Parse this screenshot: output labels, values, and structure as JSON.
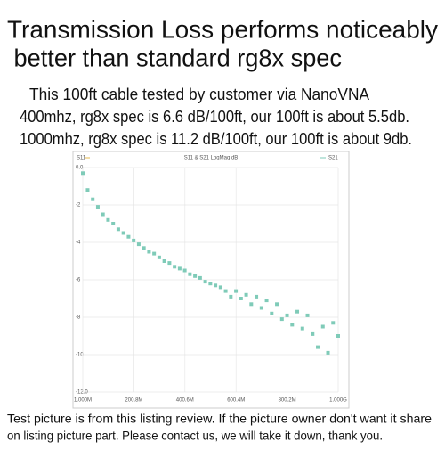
{
  "header": {
    "title_lines": [
      "Transmission Loss performs noticeably",
      " better than standard rg8x spec"
    ],
    "notes": [
      "This 100ft cable tested by customer via NanoVNA",
      "400mhz, rg8x spec is 6.6 dB/100ft, our 100ft is about 5.5db.",
      "1000mhz, rg8x spec is 11.2 dB/100ft, our 100ft is about 9db."
    ]
  },
  "chart_data": {
    "type": "scatter",
    "title": "S11 & S21 LogMag dB",
    "annotations": [
      "S11"
    ],
    "x": [
      1,
      20,
      40,
      60,
      80,
      100,
      120,
      140,
      160,
      180,
      200,
      220,
      240,
      260,
      280,
      300,
      320,
      340,
      360,
      380,
      400,
      420,
      440,
      460,
      480,
      500,
      520,
      540,
      560,
      580,
      600,
      620,
      640,
      660,
      680,
      700,
      720,
      740,
      760,
      780,
      800,
      820,
      840,
      860,
      880,
      900,
      920,
      940,
      960,
      980,
      1000
    ],
    "series": [
      {
        "name": "S21",
        "color": "#7fcbb8",
        "values": [
          -0.3,
          -1.2,
          -1.7,
          -2.1,
          -2.5,
          -2.8,
          -3.0,
          -3.3,
          -3.5,
          -3.7,
          -3.9,
          -4.1,
          -4.3,
          -4.5,
          -4.6,
          -4.8,
          -5.0,
          -5.1,
          -5.3,
          -5.4,
          -5.5,
          -5.7,
          -5.8,
          -5.9,
          -6.1,
          -6.2,
          -6.3,
          -6.4,
          -6.6,
          -6.9,
          -6.6,
          -7.0,
          -6.8,
          -7.3,
          -6.9,
          -7.5,
          -7.1,
          -7.8,
          -7.3,
          -8.1,
          -7.9,
          -8.4,
          -7.7,
          -8.6,
          -7.9,
          -8.9,
          -9.6,
          -8.5,
          -9.9,
          -8.3,
          -9.0
        ]
      }
    ],
    "xlim": [
      1,
      1000
    ],
    "xticks": [
      {
        "value": 1,
        "label": "1.000M"
      },
      {
        "value": 200.8,
        "label": "200.8M"
      },
      {
        "value": 400.6,
        "label": "400.6M"
      },
      {
        "value": 600.4,
        "label": "600.4M"
      },
      {
        "value": 800.2,
        "label": "800.2M"
      },
      {
        "value": 1000,
        "label": "1.000G"
      }
    ],
    "ylim": [
      -12,
      0
    ],
    "yticks": [
      {
        "value": 0,
        "label": "0.0"
      },
      -2,
      -4,
      -6,
      -8,
      -10,
      {
        "value": -12,
        "label": "-12.0"
      }
    ],
    "grid": true
  },
  "footer": {
    "lines": [
      "Test picture is from this listing review. If the picture owner don't want it share",
      "on listing picture part. Please contact us, we will take it down, thank you."
    ]
  }
}
